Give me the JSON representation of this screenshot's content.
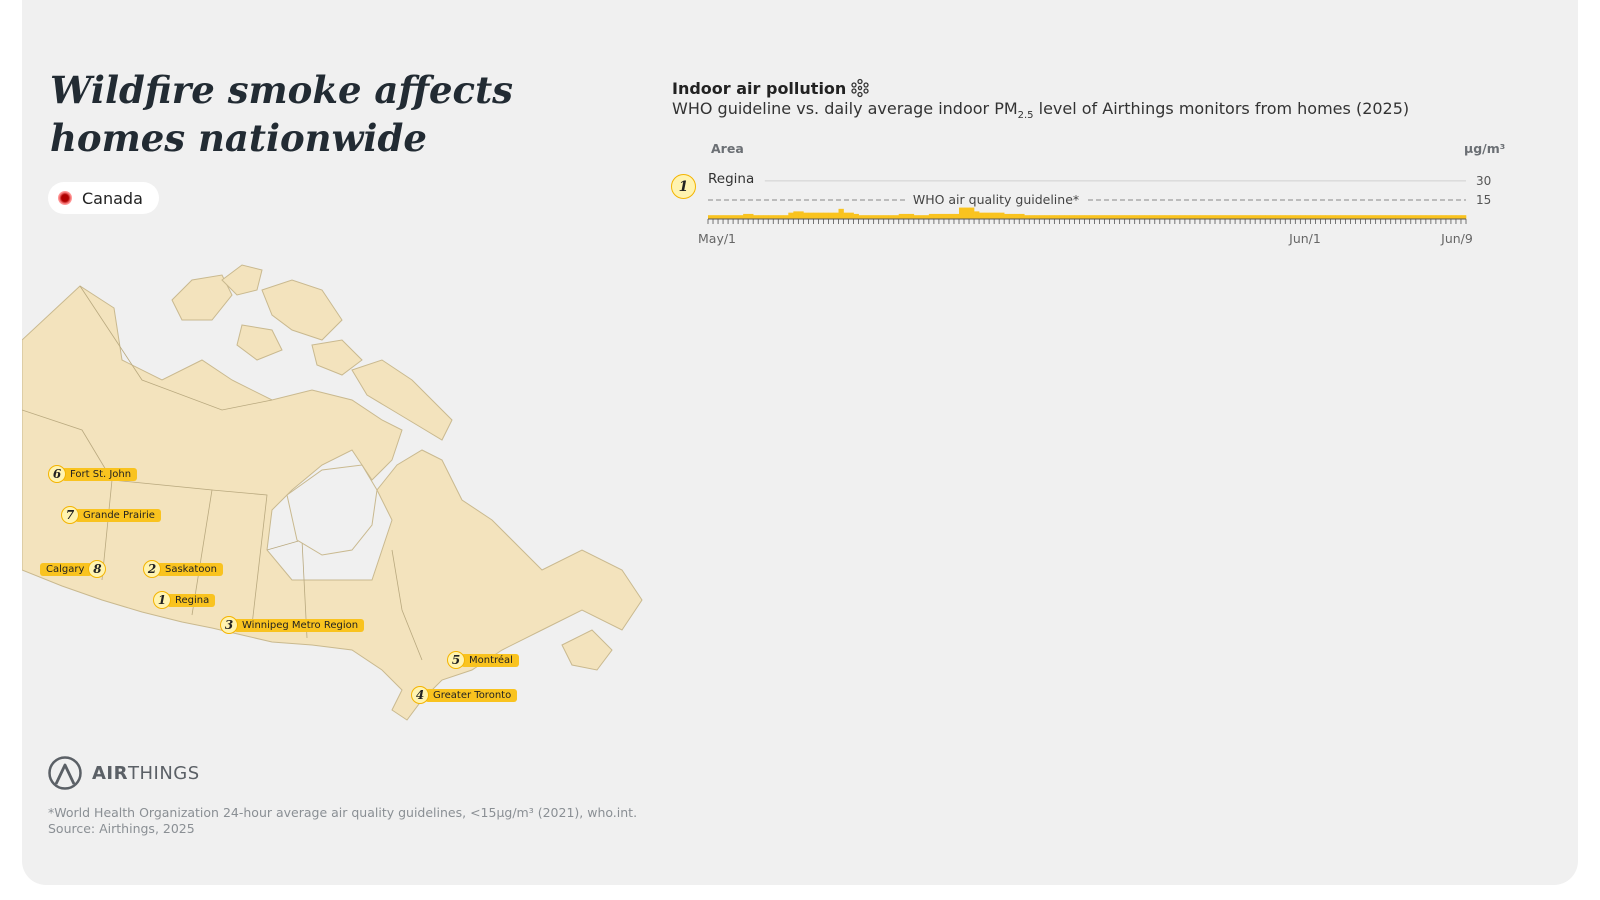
{
  "headline": {
    "line1": "Wildfire smoke affects",
    "line2": "homes nationwide"
  },
  "legend": {
    "country": "Canada"
  },
  "map": {
    "cities": [
      {
        "num": "6",
        "name": "Fort St. John"
      },
      {
        "num": "7",
        "name": "Grande Prairie"
      },
      {
        "num": "8",
        "name": "Calgary"
      },
      {
        "num": "2",
        "name": "Saskatoon"
      },
      {
        "num": "1",
        "name": "Regina"
      },
      {
        "num": "3",
        "name": "Winnipeg Metro Region"
      },
      {
        "num": "5",
        "name": "Montréal"
      },
      {
        "num": "4",
        "name": "Greater Toronto"
      }
    ]
  },
  "logo": {
    "strong": "AIR",
    "rest": "THINGS"
  },
  "footnote": {
    "line1": "*World Health Organization 24-hour average air quality guidelines, <15µg/m³ (2021), who.int.",
    "line2": "Source: Airthings, 2025"
  },
  "chart_data": {
    "type": "bar",
    "title": "Indoor air pollution",
    "subtitle_pre": "WHO guideline vs. daily average indoor PM",
    "subtitle_sub": "2.5",
    "subtitle_post": " level of Airthings monitors from homes (2025)",
    "area_label": "Area",
    "unit": "µg/m³",
    "guideline_value": 15,
    "guideline_label": "WHO air quality guideline*",
    "yticks": [
      30,
      15
    ],
    "ylim": [
      0,
      30
    ],
    "x_ticks": [
      "May/1",
      "Jun/1",
      "Jun/9"
    ],
    "colors": {
      "below": "#f9c31f",
      "above": "#c4000c",
      "guideline": "#888888"
    },
    "series": [
      {
        "num": "1",
        "name": "Regina",
        "values": [
          3,
          3,
          3,
          3,
          3,
          3,
          3,
          4,
          4,
          3,
          3,
          3,
          3,
          3,
          3,
          3,
          5,
          6,
          6,
          5,
          5,
          5,
          5,
          5,
          5,
          5,
          8,
          5,
          5,
          4,
          3,
          3,
          3,
          3,
          3,
          3,
          3,
          3,
          4,
          4,
          4,
          3,
          3,
          3,
          4,
          4,
          4,
          4,
          4,
          4,
          9,
          9,
          9,
          6,
          5,
          5,
          5,
          5,
          5,
          4,
          4,
          4,
          4,
          3,
          3,
          3,
          3,
          3,
          3,
          3,
          3,
          3,
          3,
          3,
          3,
          3,
          3,
          3,
          3,
          3,
          3,
          3,
          3,
          3,
          3,
          3,
          3,
          3,
          3,
          3,
          3,
          3,
          3,
          3,
          3,
          3,
          3,
          3,
          3,
          3,
          3,
          3,
          3,
          3,
          3,
          3,
          3,
          3,
          3,
          3,
          3,
          3,
          3,
          3,
          3,
          3,
          3,
          3,
          3,
          3,
          3,
          3,
          3,
          3,
          3,
          3,
          3,
          3,
          3,
          3,
          3,
          3,
          3,
          3,
          3,
          3,
          3,
          3,
          3,
          3,
          3,
          3,
          3,
          3,
          3,
          3,
          3,
          3,
          3,
          3,
          3
        ]
      }
    ]
  }
}
